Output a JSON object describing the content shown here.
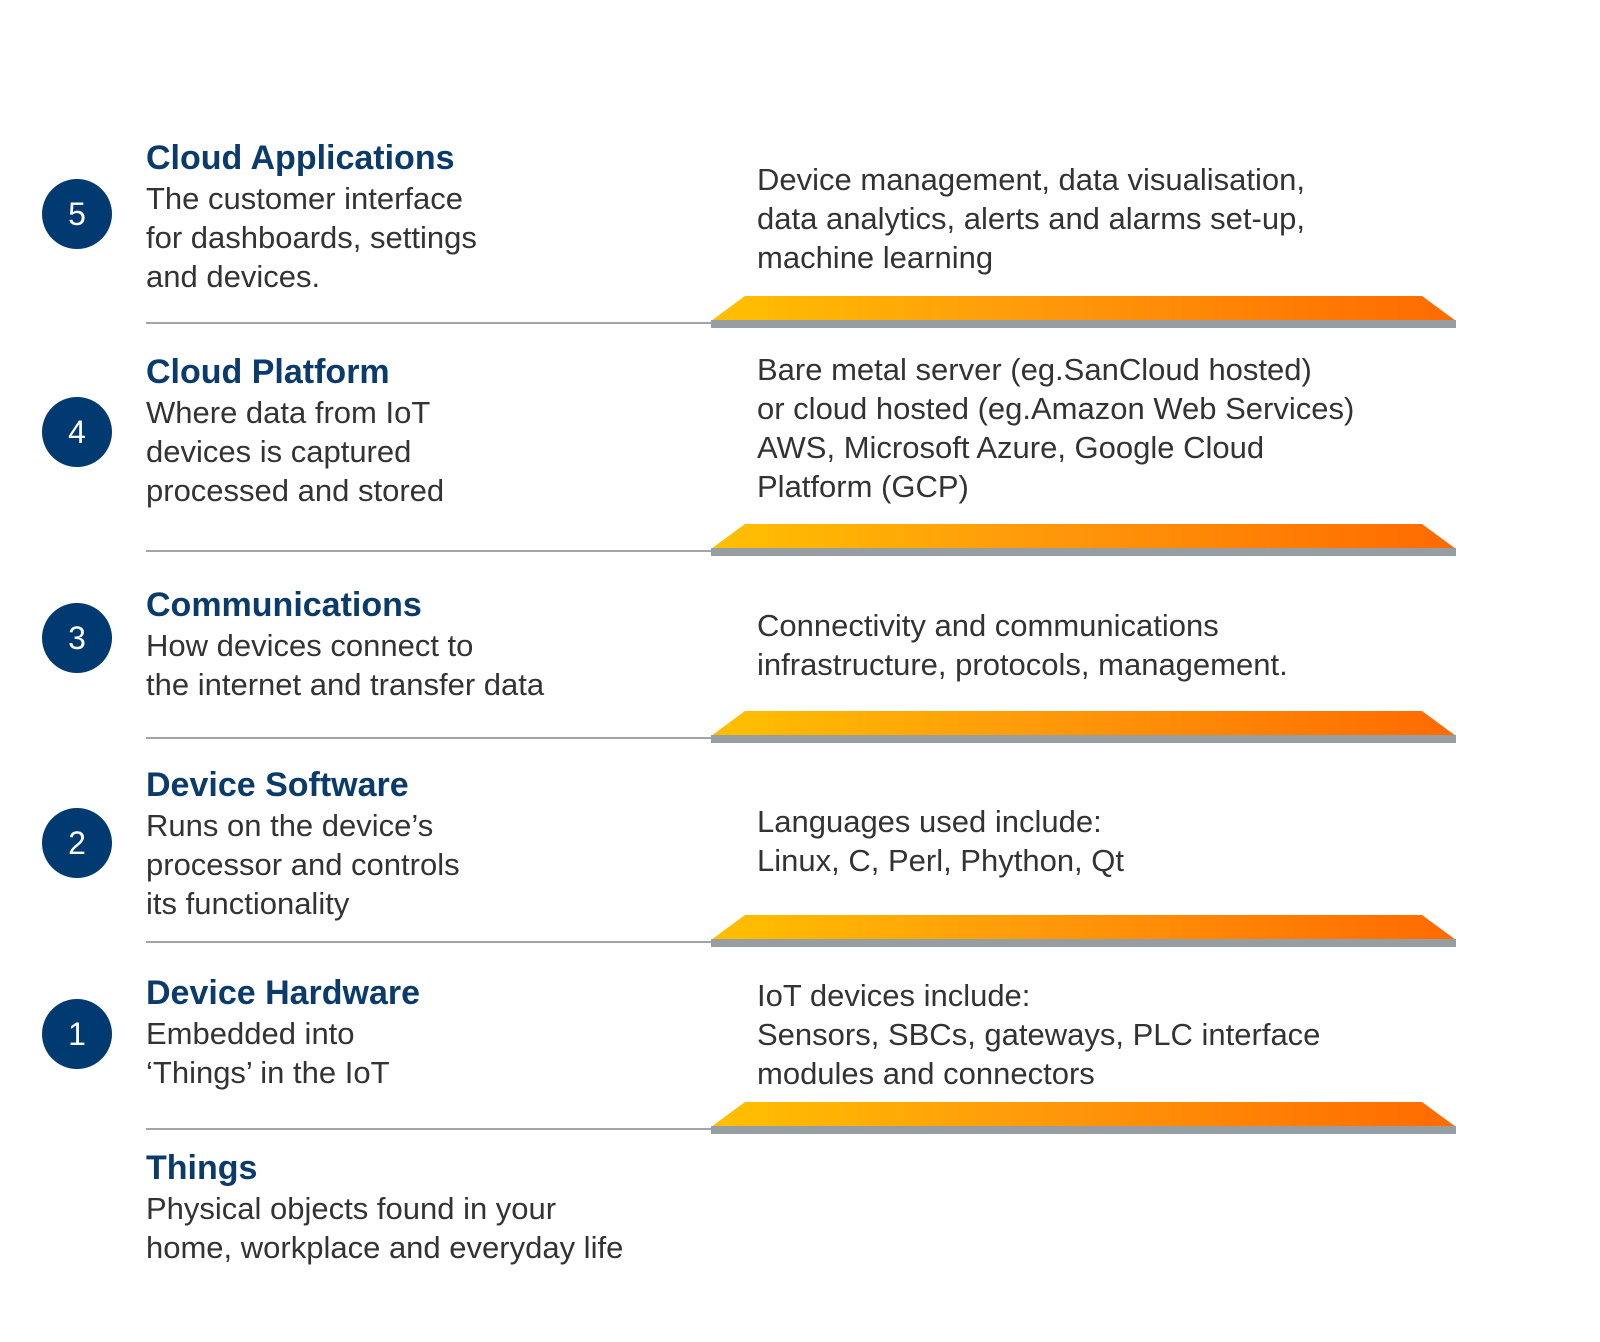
{
  "layers": [
    {
      "number": "5",
      "title": "Cloud Applications",
      "description": [
        "The customer interface",
        "for dashboards, settings",
        "and devices."
      ],
      "detail": [
        "Device management, data visualisation,",
        "data analytics, alerts and alarms set-up,",
        "machine learning"
      ]
    },
    {
      "number": "4",
      "title": "Cloud Platform",
      "description": [
        "Where data from IoT",
        "devices is captured",
        "processed and stored"
      ],
      "detail": [
        "Bare metal server (eg.SanCloud hosted)",
        "or cloud hosted (eg.Amazon Web Services)",
        "AWS, Microsoft Azure, Google Cloud",
        "Platform (GCP)"
      ]
    },
    {
      "number": "3",
      "title": "Communications",
      "description": [
        "How devices connect to",
        "the internet and transfer data"
      ],
      "detail": [
        "Connectivity and communications",
        "infrastructure, protocols, management."
      ]
    },
    {
      "number": "2",
      "title": "Device Software",
      "description": [
        "Runs on the device’s",
        "processor and controls",
        "its functionality"
      ],
      "detail": [
        "Languages used include:",
        "Linux, C, Perl, Phython, Qt"
      ]
    },
    {
      "number": "1",
      "title": "Device Hardware",
      "description": [
        "Embedded into",
        "‘Things’ in the IoT"
      ],
      "detail": [
        "IoT devices include:",
        "Sensors, SBCs, gateways, PLC interface",
        "modules and connectors"
      ]
    }
  ],
  "base": {
    "title": "Things",
    "description": [
      "Physical objects found in your",
      "home, workplace and everyday life"
    ]
  },
  "colors": {
    "badge": "#003a70",
    "title": "#0b3b6b",
    "text": "#333333",
    "bar_gradient": [
      "#ffc000",
      "#ff6a00"
    ],
    "bar_base": "#969da3",
    "divider": "#a0a5aa"
  }
}
